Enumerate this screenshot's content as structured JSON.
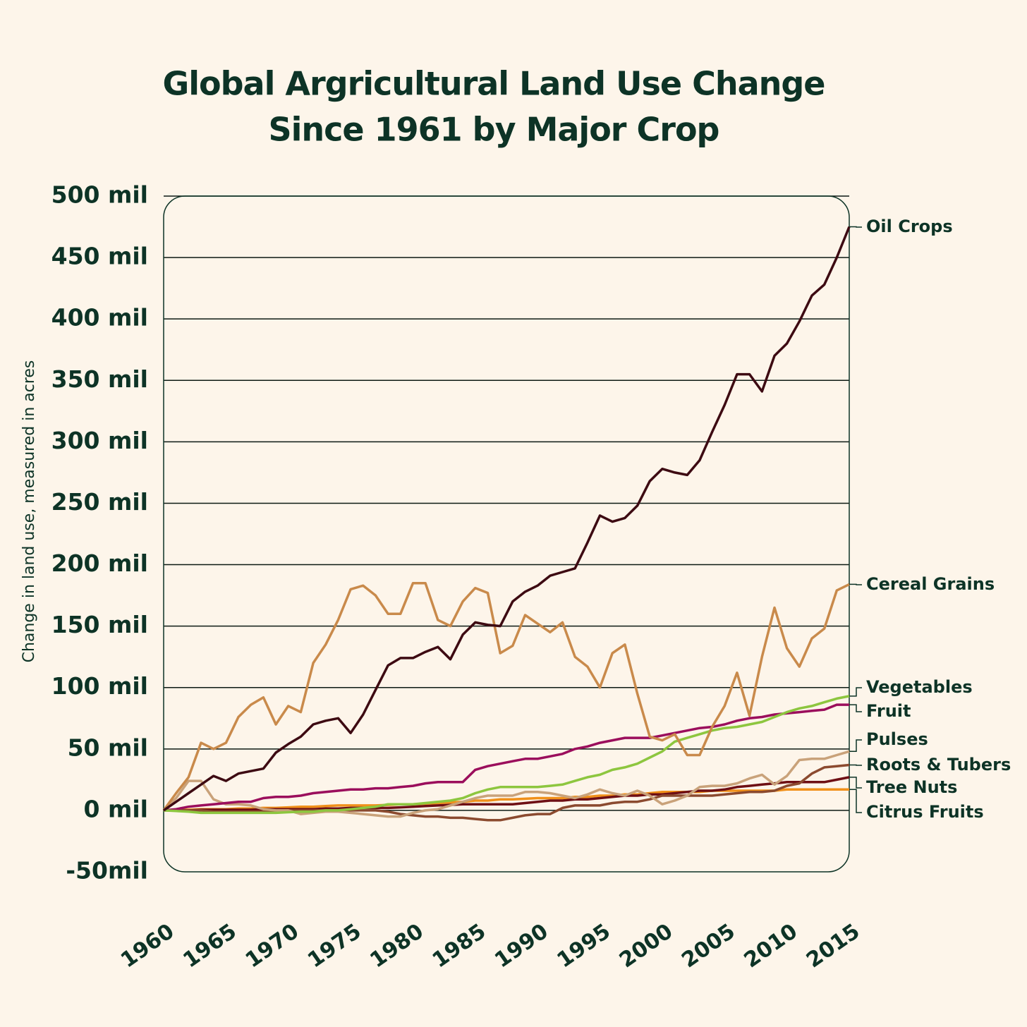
{
  "chart_data": {
    "type": "line",
    "title": [
      "Global Argricultural Land Use Change",
      "Since 1961 by Major Crop"
    ],
    "y_label": "Change in land use, measured in acres",
    "x": [
      1960,
      1961,
      1962,
      1963,
      1964,
      1965,
      1966,
      1967,
      1968,
      1969,
      1970,
      1971,
      1972,
      1973,
      1974,
      1975,
      1976,
      1977,
      1978,
      1979,
      1980,
      1981,
      1982,
      1983,
      1984,
      1985,
      1986,
      1987,
      1988,
      1989,
      1990,
      1991,
      1992,
      1993,
      1994,
      1995,
      1996,
      1997,
      1998,
      1999,
      2000,
      2001,
      2002,
      2003,
      2004,
      2005,
      2006,
      2007,
      2008,
      2009,
      2010,
      2011,
      2012,
      2013,
      2014,
      2015
    ],
    "xlim": [
      1960,
      2015
    ],
    "xticks": [
      1960,
      1965,
      1970,
      1975,
      1980,
      1985,
      1990,
      1995,
      2000,
      2005,
      2010,
      2015
    ],
    "ylim": [
      -50,
      500
    ],
    "yticks": [
      {
        "value": -50,
        "label": "-50mil"
      },
      {
        "value": 0,
        "label": "0 mil"
      },
      {
        "value": 50,
        "label": "50 mil"
      },
      {
        "value": 100,
        "label": "100 mil"
      },
      {
        "value": 150,
        "label": "150 mil"
      },
      {
        "value": 200,
        "label": "200 mil"
      },
      {
        "value": 250,
        "label": "250 mil"
      },
      {
        "value": 300,
        "label": "300 mil"
      },
      {
        "value": 350,
        "label": "350 mil"
      },
      {
        "value": 400,
        "label": "400 mil"
      },
      {
        "value": 450,
        "label": "450 mil"
      },
      {
        "value": 500,
        "label": "500 mil"
      }
    ],
    "grid": true,
    "series": [
      {
        "name": "Oil Crops",
        "color": "#3d0a12",
        "values": [
          0,
          7,
          14,
          21,
          28,
          24,
          30,
          32,
          34,
          47,
          54,
          60,
          70,
          73,
          75,
          63,
          78,
          98,
          118,
          124,
          124,
          129,
          133,
          123,
          143,
          153,
          151,
          150,
          170,
          178,
          183,
          191,
          194,
          197,
          218,
          240,
          235,
          238,
          248,
          268,
          278,
          275,
          273,
          285,
          308,
          330,
          355,
          355,
          341,
          370,
          380,
          398,
          419,
          428,
          450,
          475
        ]
      },
      {
        "name": "Cereal Grains",
        "color": "#c98a4b",
        "values": [
          0,
          14,
          27,
          55,
          50,
          55,
          76,
          86,
          92,
          70,
          85,
          80,
          120,
          135,
          155,
          180,
          183,
          175,
          160,
          160,
          185,
          185,
          155,
          150,
          170,
          181,
          177,
          128,
          134,
          159,
          152,
          145,
          153,
          125,
          117,
          100,
          128,
          135,
          95,
          60,
          57,
          62,
          45,
          45,
          68,
          85,
          112,
          77,
          125,
          165,
          132,
          117,
          140,
          148,
          179,
          184
        ]
      },
      {
        "name": "Vegetables",
        "color": "#8dc63f",
        "values": [
          0,
          -0.5,
          -1,
          -2,
          -2,
          -2,
          -2,
          -2,
          -2,
          -2,
          -1.5,
          -1,
          -1,
          0,
          0,
          1,
          2,
          3,
          5,
          5,
          5,
          6,
          7,
          8,
          10,
          14,
          17,
          19,
          19,
          19,
          19,
          20,
          21,
          24,
          27,
          29,
          33,
          35,
          38,
          43,
          48,
          56,
          59,
          62,
          65,
          67,
          68,
          70,
          72,
          76,
          80,
          83,
          85,
          88,
          91,
          93
        ]
      },
      {
        "name": "Fruit",
        "color": "#9b0e5c",
        "values": [
          0,
          1,
          3,
          4,
          5,
          6,
          7,
          7,
          10,
          11,
          11,
          12,
          14,
          15,
          16,
          17,
          17,
          18,
          18,
          19,
          20,
          22,
          23,
          23,
          23,
          33,
          36,
          38,
          40,
          42,
          42,
          44,
          46,
          50,
          52,
          55,
          57,
          59,
          59,
          59,
          61,
          63,
          65,
          67,
          68,
          70,
          73,
          75,
          76,
          78,
          79,
          80,
          81,
          82,
          86,
          86
        ]
      },
      {
        "name": "Pulses",
        "color": "#c9a27a",
        "values": [
          0,
          10,
          24,
          24,
          9,
          5,
          5,
          4,
          1,
          0,
          0,
          -3,
          -2,
          -1,
          -1,
          -2,
          -3,
          -4,
          -5,
          -5,
          -2,
          0,
          1,
          4,
          7,
          10,
          12,
          12,
          12,
          15,
          15,
          14,
          12,
          10,
          13,
          17,
          14,
          12,
          16,
          12,
          5,
          8,
          12,
          19,
          20,
          20,
          22,
          26,
          29,
          21,
          28,
          41,
          42,
          42,
          45,
          48
        ]
      },
      {
        "name": "Roots & Tubers",
        "color": "#8b4a2f",
        "values": [
          0,
          0,
          0,
          0,
          -1,
          -1,
          -1,
          -1,
          -1,
          -1,
          0,
          0,
          0,
          0,
          0,
          0,
          0,
          0,
          -1,
          -3,
          -4,
          -5,
          -5,
          -6,
          -6,
          -7,
          -8,
          -8,
          -6,
          -4,
          -3,
          -3,
          2,
          4,
          4,
          4,
          6,
          7,
          7,
          9,
          12,
          12,
          12,
          12,
          12,
          13,
          14,
          15,
          15,
          16,
          20,
          22,
          30,
          35,
          36,
          37
        ]
      },
      {
        "name": "Tree Nuts",
        "color": "#6e0f14",
        "values": [
          0,
          0,
          0,
          0.5,
          0.5,
          0.5,
          0.5,
          0.5,
          1,
          1,
          1,
          1,
          1,
          1.5,
          1.5,
          2,
          2,
          2,
          2,
          2.5,
          3,
          3.5,
          4,
          4.5,
          5,
          5,
          5,
          5,
          5,
          6,
          7,
          8,
          8,
          9,
          9,
          10,
          11,
          12,
          12,
          13,
          13,
          14,
          15,
          16,
          16,
          17,
          19,
          20,
          21,
          22,
          23,
          23,
          23,
          23,
          25,
          27
        ]
      },
      {
        "name": "Citrus Fruits",
        "color": "#f0901a",
        "values": [
          0,
          0.5,
          0.5,
          1,
          1,
          1,
          1.5,
          1.5,
          2,
          2,
          2.5,
          3,
          3,
          3.5,
          4,
          4,
          4,
          4,
          4.5,
          5,
          5,
          5.5,
          6,
          6.5,
          7,
          8,
          8,
          9,
          9,
          9.5,
          10,
          10,
          10,
          11,
          11,
          12,
          12,
          13,
          13,
          14,
          15,
          15,
          15,
          15,
          16,
          16,
          16,
          16,
          16,
          16,
          17,
          17,
          17,
          17,
          17,
          17
        ]
      }
    ]
  }
}
